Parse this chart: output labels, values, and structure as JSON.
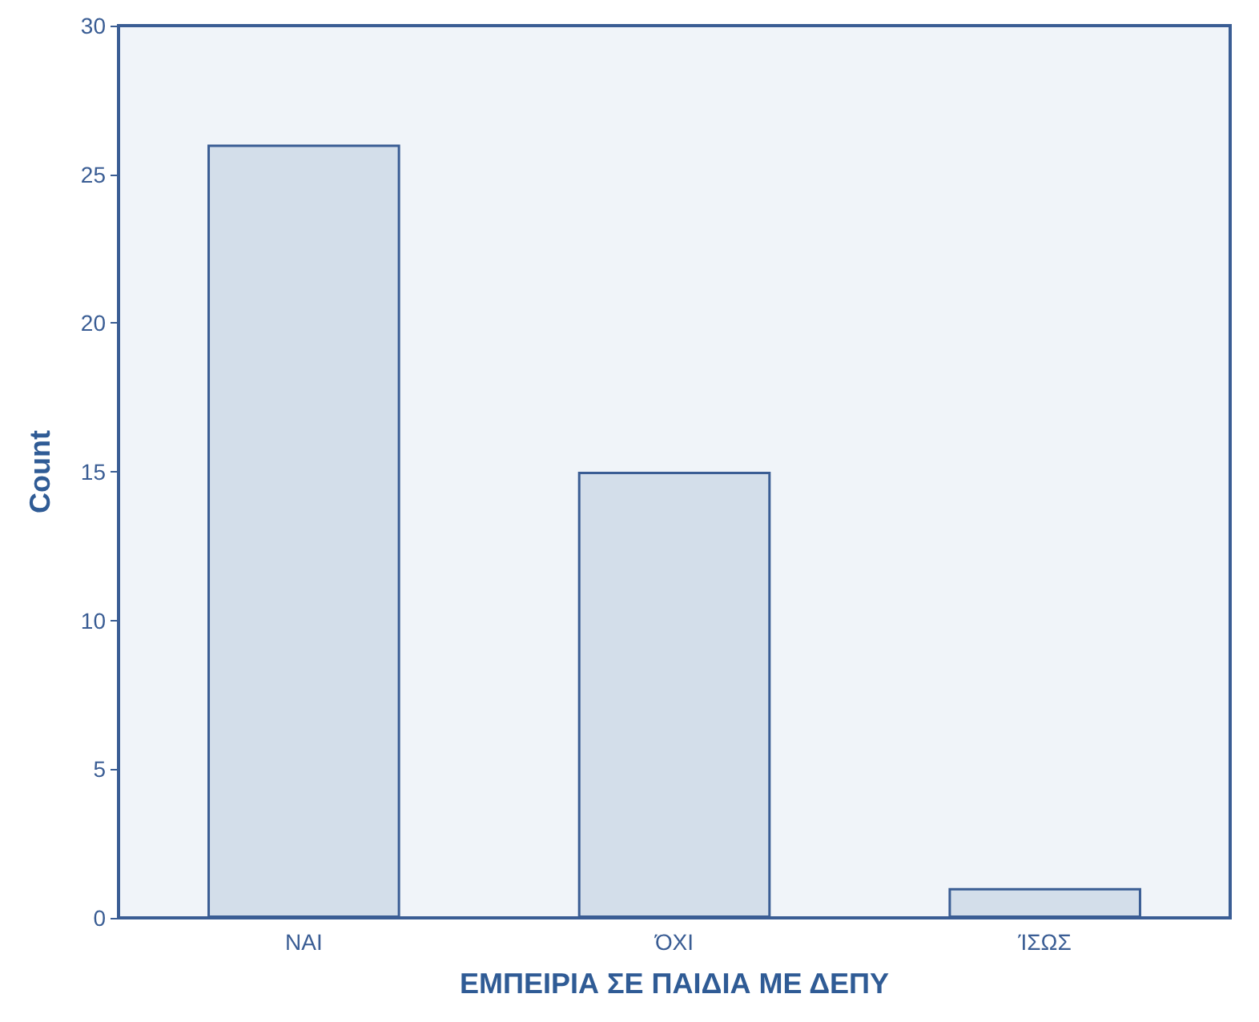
{
  "chart_data": {
    "type": "bar",
    "xlabel": "ΕΜΠΕΙΡΙΑ ΣΕ ΠΑΙΔΙΑ ΜΕ ΔΕΠΥ",
    "ylabel": "Count",
    "categories": [
      "ΝΑΙ",
      "ΌΧΙ",
      "ΊΣΩΣ"
    ],
    "values": [
      26,
      15,
      1
    ],
    "color": "#d3deea",
    "ylim": [
      0,
      30
    ],
    "yticks": [
      0,
      5,
      10,
      15,
      20,
      25,
      30
    ],
    "grid": false
  }
}
